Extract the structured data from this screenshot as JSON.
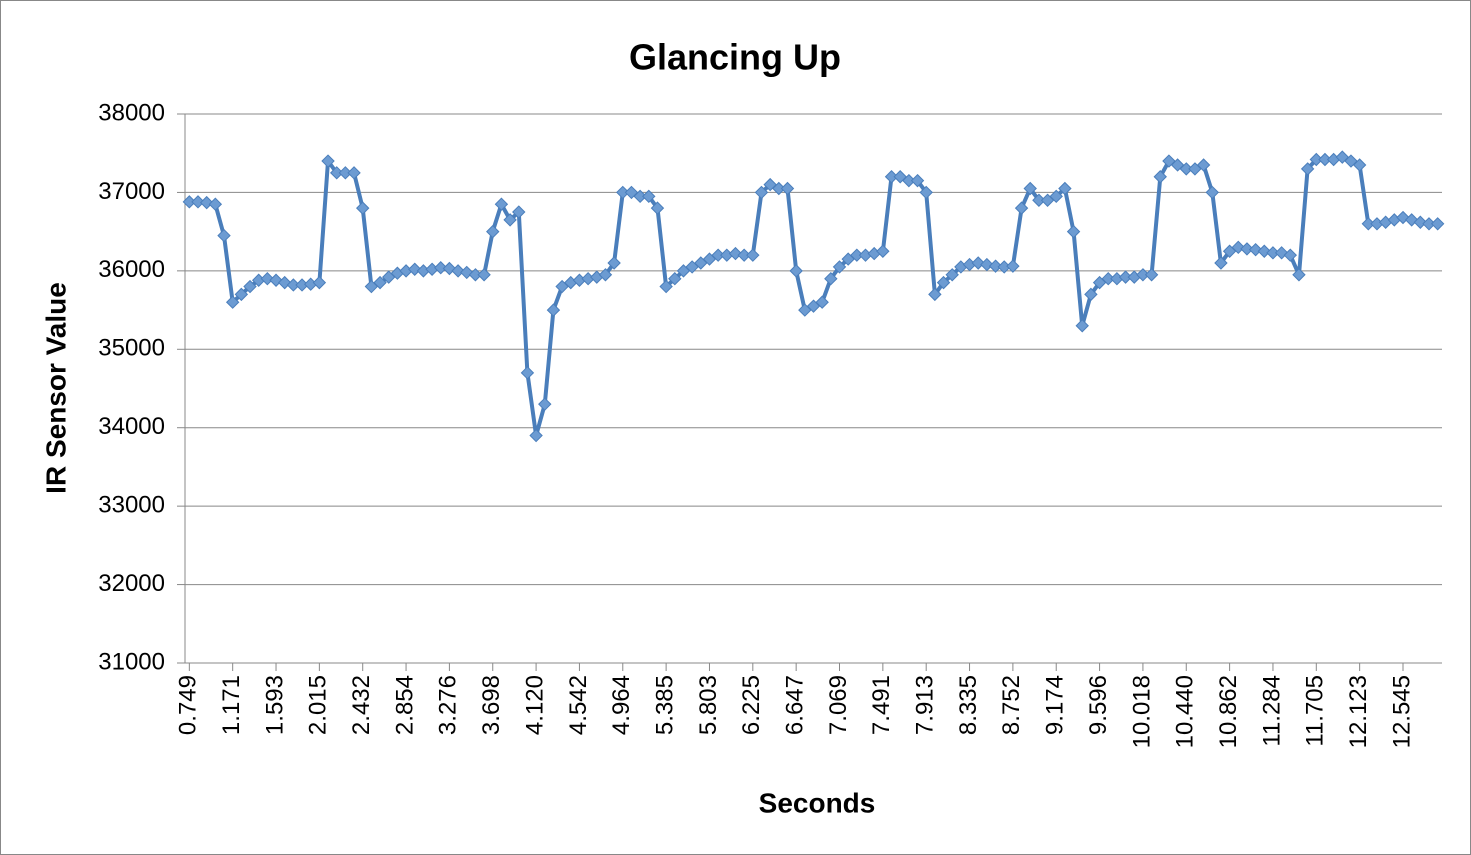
{
  "chart_data": {
    "type": "line",
    "title": "Glancing Up",
    "x_label": "Seconds",
    "y_label": "IR Sensor Value",
    "categories": [
      "0.749",
      null,
      null,
      null,
      null,
      "1.171",
      null,
      null,
      null,
      null,
      "1.593",
      null,
      null,
      null,
      null,
      "2.015",
      null,
      null,
      null,
      null,
      "2.432",
      null,
      null,
      null,
      null,
      "2.854",
      null,
      null,
      null,
      null,
      "3.276",
      null,
      null,
      null,
      null,
      "3.698",
      null,
      null,
      null,
      null,
      "4.120",
      null,
      null,
      null,
      null,
      "4.542",
      null,
      null,
      null,
      null,
      "4.964",
      null,
      null,
      null,
      null,
      "5.385",
      null,
      null,
      null,
      null,
      "5.803",
      null,
      null,
      null,
      null,
      "6.225",
      null,
      null,
      null,
      null,
      "6.647",
      null,
      null,
      null,
      null,
      "7.069",
      null,
      null,
      null,
      null,
      "7.491",
      null,
      null,
      null,
      null,
      "7.913",
      null,
      null,
      null,
      null,
      "8.335",
      null,
      null,
      null,
      null,
      "8.752",
      null,
      null,
      null,
      null,
      "9.174",
      null,
      null,
      null,
      null,
      "9.596",
      null,
      null,
      null,
      null,
      "10.018",
      null,
      null,
      null,
      null,
      "10.440",
      null,
      null,
      null,
      null,
      "10.862",
      null,
      null,
      null,
      null,
      "11.284",
      null,
      null,
      null,
      null,
      "11.705",
      null,
      null,
      null,
      null,
      "12.123",
      null,
      null,
      null,
      null,
      "12.545",
      null,
      null,
      null,
      null
    ],
    "values": [
      36880,
      36880,
      36870,
      36850,
      36450,
      35600,
      35700,
      35800,
      35880,
      35900,
      35880,
      35850,
      35820,
      35820,
      35830,
      35850,
      37400,
      37250,
      37250,
      37250,
      36800,
      35800,
      35850,
      35920,
      35970,
      36000,
      36020,
      36000,
      36020,
      36040,
      36030,
      36000,
      35980,
      35950,
      35950,
      36500,
      36850,
      36650,
      36750,
      34700,
      33900,
      34300,
      35500,
      35800,
      35850,
      35880,
      35900,
      35920,
      35950,
      36100,
      37000,
      37000,
      36950,
      36950,
      36800,
      35800,
      35900,
      36000,
      36050,
      36100,
      36150,
      36200,
      36200,
      36220,
      36200,
      36200,
      37000,
      37100,
      37050,
      37050,
      36000,
      35500,
      35550,
      35600,
      35900,
      36050,
      36150,
      36200,
      36200,
      36220,
      36250,
      37200,
      37200,
      37150,
      37150,
      37000,
      35700,
      35850,
      35950,
      36050,
      36080,
      36100,
      36080,
      36060,
      36050,
      36060,
      36800,
      37050,
      36900,
      36900,
      36950,
      37050,
      36500,
      35300,
      35700,
      35850,
      35900,
      35900,
      35920,
      35920,
      35950,
      35950,
      37200,
      37400,
      37350,
      37300,
      37300,
      37350,
      37000,
      36100,
      36250,
      36300,
      36280,
      36270,
      36250,
      36230,
      36230,
      36200,
      35950,
      37300,
      37420,
      37420,
      37420,
      37450,
      37400,
      37350,
      36600,
      36600,
      36620,
      36650,
      36680,
      36650,
      36620,
      36600,
      36600
    ],
    "color": "#4a7ebb",
    "marker_color": "#6c9bd2",
    "ylim": [
      31000,
      38000
    ],
    "yticks": [
      31000,
      32000,
      33000,
      34000,
      35000,
      36000,
      37000,
      38000
    ],
    "grid": true
  }
}
